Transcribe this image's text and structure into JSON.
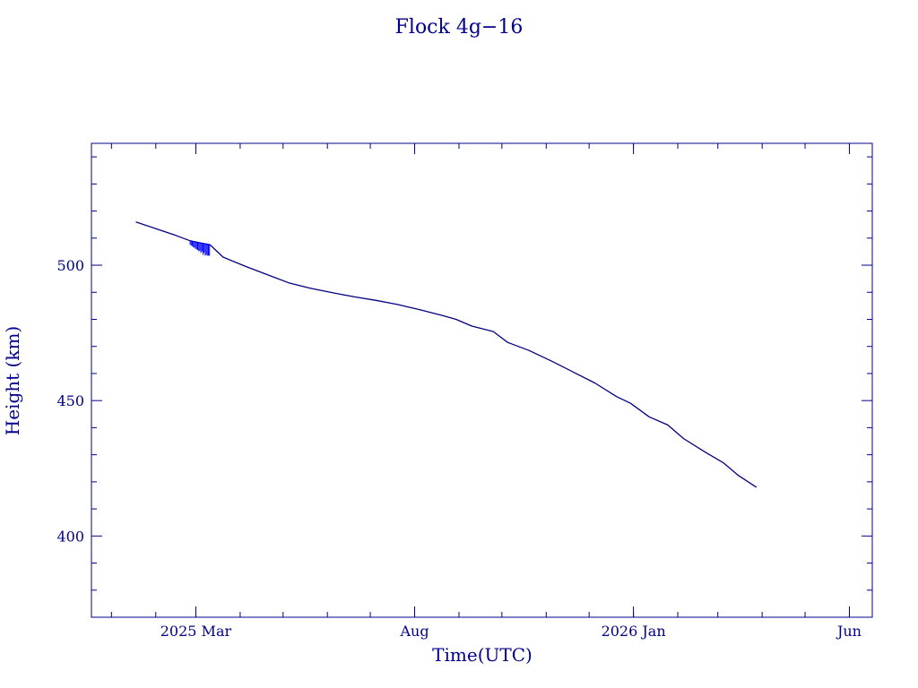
{
  "chart_data": {
    "type": "line",
    "title": "Flock 4g−16",
    "xlabel": "Time(UTC)",
    "ylabel": "Height (km)",
    "x_type": "date",
    "xlim": [
      "2024-12-18",
      "2026-06-17"
    ],
    "ylim": [
      370,
      545
    ],
    "x_ticks": [
      {
        "date": "2025-03-01",
        "label": "2025 Mar"
      },
      {
        "date": "2025-08-01",
        "label": "Aug"
      },
      {
        "date": "2026-01-01",
        "label": "2026 Jan"
      },
      {
        "date": "2026-06-01",
        "label": "Jun"
      }
    ],
    "y_ticks": [
      400,
      450,
      500
    ],
    "grid": false,
    "legend": "none",
    "colors": {
      "axes": "#00008b",
      "line": "#000080",
      "noise": "#0000ff"
    },
    "series": [
      {
        "points": [
          [
            "2025-01-18",
            516
          ],
          [
            "2025-02-01",
            513.5
          ],
          [
            "2025-02-15",
            511
          ],
          [
            "2025-02-25",
            509
          ],
          [
            "2025-03-11",
            507.5
          ],
          [
            "2025-03-20",
            503
          ],
          [
            "2025-04-05",
            499.5
          ],
          [
            "2025-04-20",
            496.5
          ],
          [
            "2025-05-05",
            493.5
          ],
          [
            "2025-05-20",
            491.5
          ],
          [
            "2025-06-05",
            489.8
          ],
          [
            "2025-06-20",
            488.3
          ],
          [
            "2025-07-05",
            487
          ],
          [
            "2025-07-20",
            485.5
          ],
          [
            "2025-08-05",
            483.5
          ],
          [
            "2025-08-20",
            481.5
          ],
          [
            "2025-08-30",
            480
          ],
          [
            "2025-09-10",
            477.5
          ],
          [
            "2025-09-25",
            475.5
          ],
          [
            "2025-10-05",
            471.5
          ],
          [
            "2025-10-20",
            468.5
          ],
          [
            "2025-11-05",
            464.5
          ],
          [
            "2025-11-20",
            460.5
          ],
          [
            "2025-12-05",
            456.5
          ],
          [
            "2025-12-20",
            451.5
          ],
          [
            "2025-12-30",
            449
          ],
          [
            "2026-01-12",
            444
          ],
          [
            "2026-01-25",
            441
          ],
          [
            "2026-02-05",
            436
          ],
          [
            "2026-02-20",
            431
          ],
          [
            "2026-03-05",
            427
          ],
          [
            "2026-03-15",
            422.5
          ],
          [
            "2026-03-28",
            418
          ]
        ]
      }
    ],
    "noise_segment": {
      "start": "2025-02-25",
      "end": "2025-03-11",
      "low": 503.5,
      "high": 509
    }
  }
}
